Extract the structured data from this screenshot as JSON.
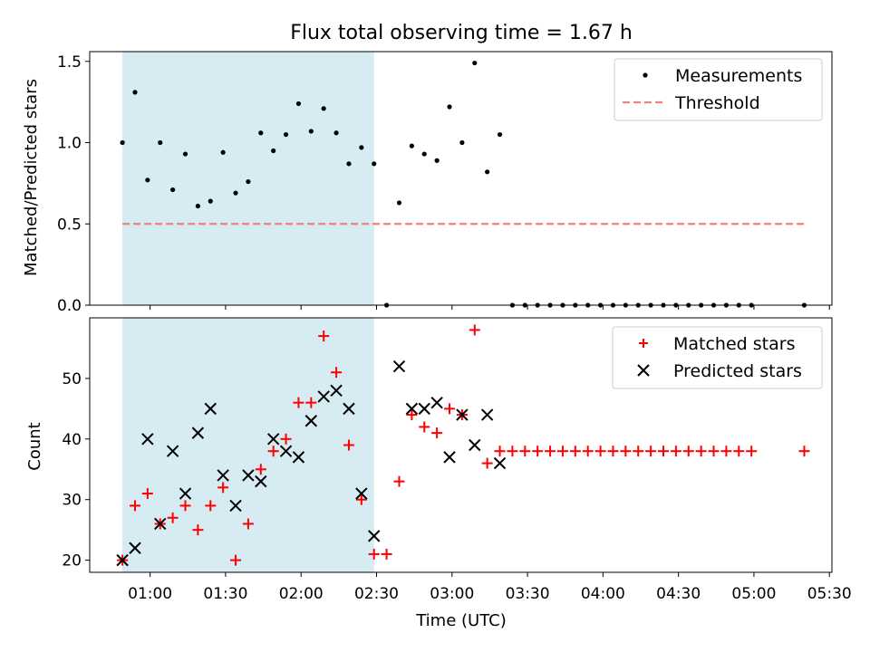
{
  "chart_data": [
    {
      "type": "scatter",
      "title": "Flux total observing time = 1.67 h",
      "xlabel": "",
      "ylabel": "Matched/Predicted stars",
      "ylim": [
        0,
        1.56
      ],
      "xlim_minutes": [
        36,
        331
      ],
      "yticks": [
        0.0,
        0.5,
        1.0,
        1.5
      ],
      "ytick_labels": [
        "0.0",
        "0.5",
        "1.0",
        "1.5"
      ],
      "shaded_span_minutes": [
        49,
        149
      ],
      "threshold": {
        "label": "Threshold",
        "value": 0.5,
        "x_range_minutes": [
          49,
          320
        ],
        "color": "#f08080"
      },
      "legend": [
        "Measurements",
        "Threshold"
      ],
      "legend_position": "top-right",
      "series": [
        {
          "name": "Measurements",
          "color": "#000000",
          "points": [
            [
              49,
              1.0
            ],
            [
              54,
              1.31
            ],
            [
              59,
              0.77
            ],
            [
              64,
              1.0
            ],
            [
              69,
              0.71
            ],
            [
              74,
              0.93
            ],
            [
              79,
              0.61
            ],
            [
              84,
              0.64
            ],
            [
              89,
              0.94
            ],
            [
              94,
              0.69
            ],
            [
              99,
              0.76
            ],
            [
              104,
              1.06
            ],
            [
              109,
              0.95
            ],
            [
              114,
              1.05
            ],
            [
              119,
              1.24
            ],
            [
              124,
              1.07
            ],
            [
              129,
              1.21
            ],
            [
              134,
              1.06
            ],
            [
              139,
              0.87
            ],
            [
              144,
              0.97
            ],
            [
              149,
              0.87
            ],
            [
              154,
              0.0
            ],
            [
              159,
              0.63
            ],
            [
              164,
              0.98
            ],
            [
              169,
              0.93
            ],
            [
              174,
              0.89
            ],
            [
              179,
              1.22
            ],
            [
              184,
              1.0
            ],
            [
              189,
              1.49
            ],
            [
              194,
              0.82
            ],
            [
              199,
              1.05
            ],
            [
              204,
              0.0
            ],
            [
              209,
              0.0
            ],
            [
              214,
              0.0
            ],
            [
              219,
              0.0
            ],
            [
              224,
              0.0
            ],
            [
              229,
              0.0
            ],
            [
              234,
              0.0
            ],
            [
              239,
              0.0
            ],
            [
              244,
              0.0
            ],
            [
              249,
              0.0
            ],
            [
              254,
              0.0
            ],
            [
              259,
              0.0
            ],
            [
              264,
              0.0
            ],
            [
              269,
              0.0
            ],
            [
              274,
              0.0
            ],
            [
              279,
              0.0
            ],
            [
              284,
              0.0
            ],
            [
              289,
              0.0
            ],
            [
              294,
              0.0
            ],
            [
              299,
              0.0
            ],
            [
              320,
              0.0
            ]
          ]
        }
      ]
    },
    {
      "type": "scatter",
      "title": "",
      "xlabel": "Time (UTC)",
      "ylabel": "Count",
      "ylim": [
        18,
        60
      ],
      "xlim_minutes": [
        36,
        331
      ],
      "yticks": [
        20,
        30,
        40,
        50
      ],
      "ytick_labels": [
        "20",
        "30",
        "40",
        "50"
      ],
      "xticks_minutes": [
        60,
        90,
        120,
        150,
        180,
        210,
        240,
        270,
        300,
        330
      ],
      "xtick_labels": [
        "01:00",
        "01:30",
        "02:00",
        "02:30",
        "03:00",
        "03:30",
        "04:00",
        "04:30",
        "05:00",
        "05:30"
      ],
      "shaded_span_minutes": [
        49,
        149
      ],
      "legend": [
        "Matched stars",
        "Predicted stars"
      ],
      "legend_position": "top-right",
      "series": [
        {
          "name": "Matched stars",
          "marker": "+",
          "color": "#ff0000",
          "points": [
            [
              49,
              20
            ],
            [
              54,
              29
            ],
            [
              59,
              31
            ],
            [
              64,
              26
            ],
            [
              69,
              27
            ],
            [
              74,
              29
            ],
            [
              79,
              25
            ],
            [
              84,
              29
            ],
            [
              89,
              32
            ],
            [
              94,
              20
            ],
            [
              99,
              26
            ],
            [
              104,
              35
            ],
            [
              109,
              38
            ],
            [
              114,
              40
            ],
            [
              119,
              46
            ],
            [
              124,
              46
            ],
            [
              129,
              57
            ],
            [
              134,
              51
            ],
            [
              139,
              39
            ],
            [
              144,
              30
            ],
            [
              149,
              21
            ],
            [
              154,
              21
            ],
            [
              159,
              33
            ],
            [
              164,
              44
            ],
            [
              169,
              42
            ],
            [
              174,
              41
            ],
            [
              179,
              45
            ],
            [
              184,
              44
            ],
            [
              189,
              58
            ],
            [
              194,
              36
            ],
            [
              199,
              38
            ],
            [
              204,
              38
            ],
            [
              209,
              38
            ],
            [
              214,
              38
            ],
            [
              219,
              38
            ],
            [
              224,
              38
            ],
            [
              229,
              38
            ],
            [
              234,
              38
            ],
            [
              239,
              38
            ],
            [
              244,
              38
            ],
            [
              249,
              38
            ],
            [
              254,
              38
            ],
            [
              259,
              38
            ],
            [
              264,
              38
            ],
            [
              269,
              38
            ],
            [
              274,
              38
            ],
            [
              279,
              38
            ],
            [
              284,
              38
            ],
            [
              289,
              38
            ],
            [
              294,
              38
            ],
            [
              299,
              38
            ],
            [
              320,
              38
            ]
          ]
        },
        {
          "name": "Predicted stars",
          "marker": "x",
          "color": "#000000",
          "points": [
            [
              49,
              20
            ],
            [
              54,
              22
            ],
            [
              59,
              40
            ],
            [
              64,
              26
            ],
            [
              69,
              38
            ],
            [
              74,
              31
            ],
            [
              79,
              41
            ],
            [
              84,
              45
            ],
            [
              89,
              34
            ],
            [
              94,
              29
            ],
            [
              99,
              34
            ],
            [
              104,
              33
            ],
            [
              109,
              40
            ],
            [
              114,
              38
            ],
            [
              119,
              37
            ],
            [
              124,
              43
            ],
            [
              129,
              47
            ],
            [
              134,
              48
            ],
            [
              139,
              45
            ],
            [
              144,
              31
            ],
            [
              149,
              24
            ],
            [
              159,
              52
            ],
            [
              164,
              45
            ],
            [
              169,
              45
            ],
            [
              174,
              46
            ],
            [
              179,
              37
            ],
            [
              184,
              44
            ],
            [
              189,
              39
            ],
            [
              194,
              44
            ],
            [
              199,
              36
            ]
          ]
        }
      ]
    }
  ]
}
